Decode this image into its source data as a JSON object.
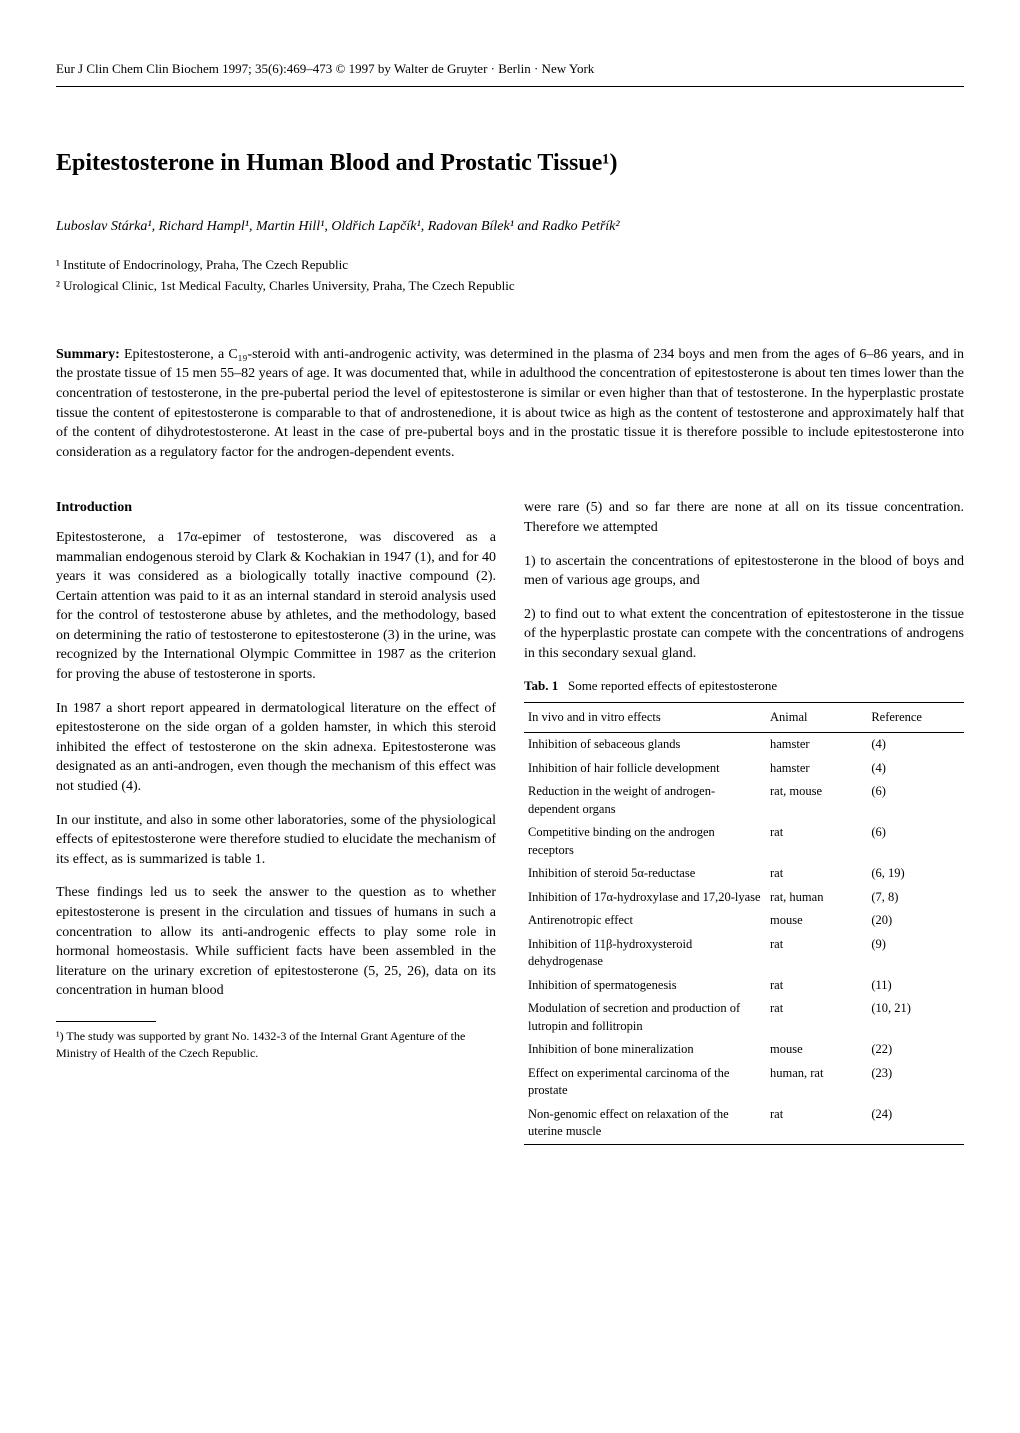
{
  "journal_line": "Eur J Clin Chem Clin Biochem 1997; 35(6):469–473 © 1997 by Walter de Gruyter · Berlin · New York",
  "title": "Epitestosterone in Human Blood and Prostatic Tissue¹)",
  "authors": "Luboslav Stárka¹, Richard Hampl¹, Martin Hill¹, Oldřich Lapčík¹, Radovan Bílek¹ and Radko Petřík²",
  "affiliations": [
    "¹ Institute of Endocrinology, Praha, The Czech Republic",
    "² Urological Clinic, 1st Medical Faculty, Charles University, Praha, The Czech Republic"
  ],
  "summary_label": "Summary:",
  "summary_text": " Epitestosterone, a C₁₉-steroid with anti-androgenic activity, was determined in the plasma of 234 boys and men from the ages of 6–86 years, and in the prostate tissue of 15 men 55–82 years of age. It was documented that, while in adulthood the concentration of epitestosterone is about ten times lower than the concentration of testosterone, in the pre-pubertal period the level of epitestosterone is similar or even higher than that of testosterone. In the hyperplastic prostate tissue the content of epitestosterone is comparable to that of androstenedione, it is about twice as high as the content of testosterone and approximately half that of the content of dihydrotestosterone. At least in the case of pre-pubertal boys and in the prostatic tissue it is therefore possible to include epitestosterone into consideration as a regulatory factor for the androgen-dependent events.",
  "left_col": {
    "heading": "Introduction",
    "paragraphs": [
      "Epitestosterone, a 17α-epimer of testosterone, was discovered as a mammalian endogenous steroid by Clark & Kochakian in 1947 (1), and for 40 years it was considered as a biologically totally inactive compound (2). Certain attention was paid to it as an internal standard in steroid analysis used for the control of testosterone abuse by athletes, and the methodology, based on determining the ratio of testosterone to epitestosterone (3) in the urine, was recognized by the International Olympic Committee in 1987 as the criterion for proving the abuse of testosterone in sports.",
      "In 1987 a short report appeared in dermatological literature on the effect of epitestosterone on the side organ of a golden hamster, in which this steroid inhibited the effect of testosterone on the skin adnexa. Epitestosterone was designated as an anti-androgen, even though the mechanism of this effect was not studied (4).",
      "In our institute, and also in some other laboratories, some of the physiological effects of epitestosterone were therefore studied to elucidate the mechanism of its effect, as is summarized is table 1.",
      "These findings led us to seek the answer to the question as to whether epitestosterone is present in the circulation and tissues of humans in such a concentration to allow its anti-androgenic effects to play some role in hormonal homeostasis. While sufficient facts have been assembled in the literature on the urinary excretion of epitestosterone (5, 25, 26), data on its concentration in human blood"
    ],
    "footnote": "¹) The study was supported by grant No. 1432-3 of the Internal Grant Agenture of the Ministry of Health of the Czech Republic."
  },
  "right_col": {
    "paragraphs": [
      "were rare (5) and so far there are none at all on its tissue concentration. Therefore we attempted",
      "1) to ascertain the concentrations of epitestosterone in the blood of boys and men of various age groups, and",
      "2) to find out to what extent the concentration of epitestosterone in the tissue of the hyperplastic prostate can compete with the concentrations of androgens in this secondary sexual gland."
    ],
    "table": {
      "caption_label": "Tab. 1",
      "caption_text": "Some reported effects of epitestosterone",
      "columns": [
        "In vivo and in vitro effects",
        "Animal",
        "Reference"
      ],
      "rows": [
        [
          "Inhibition of sebaceous glands",
          "hamster",
          "(4)"
        ],
        [
          "Inhibition of hair follicle development",
          "hamster",
          "(4)"
        ],
        [
          "Reduction in the weight of androgen-dependent organs",
          "rat, mouse",
          "(6)"
        ],
        [
          "Competitive binding on the androgen receptors",
          "rat",
          "(6)"
        ],
        [
          "Inhibition of steroid 5α-reductase",
          "rat",
          "(6, 19)"
        ],
        [
          "Inhibition of 17α-hydroxylase and 17,20-lyase",
          "rat, human",
          "(7, 8)"
        ],
        [
          "Antirenotropic effect",
          "mouse",
          "(20)"
        ],
        [
          "Inhibition of 11β-hydroxysteroid dehydrogenase",
          "rat",
          "(9)"
        ],
        [
          "Inhibition of spermatogenesis",
          "rat",
          "(11)"
        ],
        [
          "Modulation of secretion and production of lutropin and follitropin",
          "rat",
          "(10, 21)"
        ],
        [
          "Inhibition of bone mineralization",
          "mouse",
          "(22)"
        ],
        [
          "Effect on experimental carcinoma of the prostate",
          "human, rat",
          "(23)"
        ],
        [
          "Non-genomic effect on relaxation of the uterine muscle",
          "rat",
          "(24)"
        ]
      ]
    }
  }
}
